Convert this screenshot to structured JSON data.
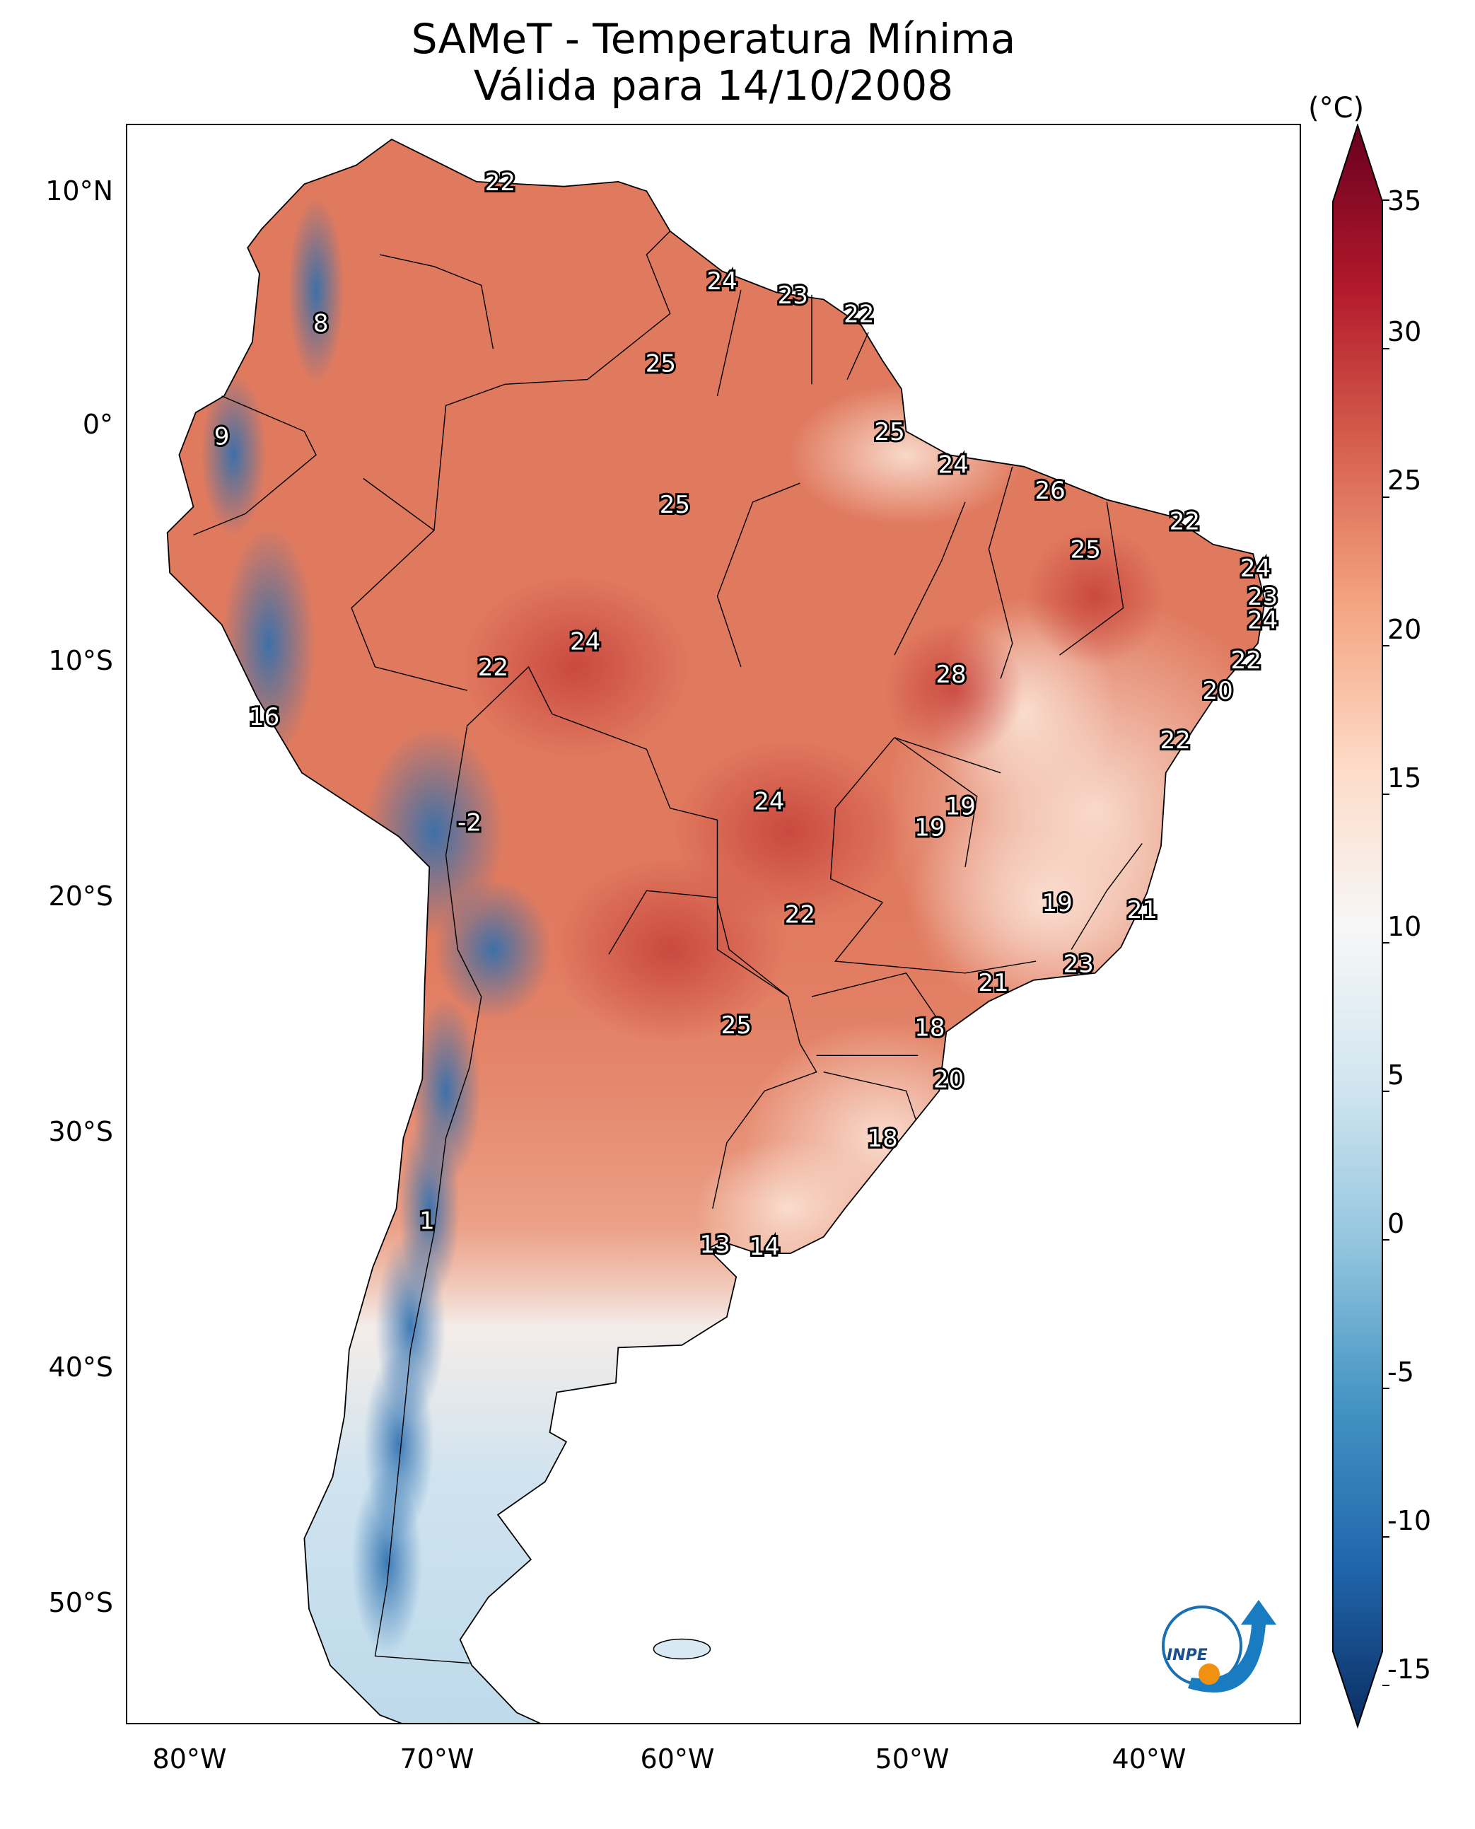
{
  "title": {
    "line1": "SAMeT - Temperatura Mínima",
    "line2": "Válida para 14/10/2008"
  },
  "colorbar": {
    "unit": "(°C)",
    "ticks": [
      "35",
      "30",
      "25",
      "20",
      "15",
      "10",
      "5",
      "0",
      "-5",
      "-10",
      "-15"
    ],
    "range": [
      -15,
      35
    ],
    "colormap": [
      "#0b2e63",
      "#2166ac",
      "#4393c3",
      "#92c5de",
      "#d1e5f0",
      "#f7f7f7",
      "#fddbc7",
      "#f4a582",
      "#d6604d",
      "#b2182b",
      "#67001f"
    ]
  },
  "axes": {
    "lat_labels": [
      "10°N",
      "0°",
      "10°S",
      "20°S",
      "30°S",
      "40°S",
      "50°S"
    ],
    "lon_labels": [
      "80°W",
      "70°W",
      "60°W",
      "50°W",
      "40°W"
    ]
  },
  "values": [
    {
      "text": "22",
      "lon": -67.2,
      "lat": 10.6
    },
    {
      "text": "24",
      "lon": -57.8,
      "lat": 6.4
    },
    {
      "text": "23",
      "lon": -54.8,
      "lat": 5.8
    },
    {
      "text": "22",
      "lon": -52.0,
      "lat": 5.0
    },
    {
      "text": "8",
      "lon": -74.8,
      "lat": 4.6
    },
    {
      "text": "25",
      "lon": -60.4,
      "lat": 2.9
    },
    {
      "text": "9",
      "lon": -79.0,
      "lat": -0.2
    },
    {
      "text": "25",
      "lon": -50.7,
      "lat": 0.0
    },
    {
      "text": "24",
      "lon": -48.0,
      "lat": -1.4
    },
    {
      "text": "26",
      "lon": -43.9,
      "lat": -2.5
    },
    {
      "text": "25",
      "lon": -59.8,
      "lat": -3.1
    },
    {
      "text": "22",
      "lon": -38.2,
      "lat": -3.8
    },
    {
      "text": "25",
      "lon": -42.4,
      "lat": -5.0
    },
    {
      "text": "24",
      "lon": -35.2,
      "lat": -5.8
    },
    {
      "text": "23",
      "lon": -34.9,
      "lat": -7.0
    },
    {
      "text": "24",
      "lon": -34.9,
      "lat": -8.0
    },
    {
      "text": "24",
      "lon": -63.6,
      "lat": -8.9
    },
    {
      "text": "22",
      "lon": -35.6,
      "lat": -9.7
    },
    {
      "text": "22",
      "lon": -67.5,
      "lat": -10.0
    },
    {
      "text": "28",
      "lon": -48.1,
      "lat": -10.3
    },
    {
      "text": "20",
      "lon": -36.8,
      "lat": -11.0
    },
    {
      "text": "16",
      "lon": -77.2,
      "lat": -12.1
    },
    {
      "text": "22",
      "lon": -38.6,
      "lat": -13.1
    },
    {
      "text": "24",
      "lon": -55.8,
      "lat": -15.7
    },
    {
      "text": "19",
      "lon": -47.7,
      "lat": -15.9
    },
    {
      "text": "19",
      "lon": -49.0,
      "lat": -16.8
    },
    {
      "text": "-2",
      "lon": -68.5,
      "lat": -16.6
    },
    {
      "text": "19",
      "lon": -43.6,
      "lat": -20.0
    },
    {
      "text": "21",
      "lon": -40.0,
      "lat": -20.3
    },
    {
      "text": "22",
      "lon": -54.5,
      "lat": -20.5
    },
    {
      "text": "23",
      "lon": -42.7,
      "lat": -22.6
    },
    {
      "text": "21",
      "lon": -46.3,
      "lat": -23.4
    },
    {
      "text": "25",
      "lon": -57.2,
      "lat": -25.2
    },
    {
      "text": "18",
      "lon": -49.0,
      "lat": -25.3
    },
    {
      "text": "20",
      "lon": -48.2,
      "lat": -27.5
    },
    {
      "text": "18",
      "lon": -51.0,
      "lat": -30.0
    },
    {
      "text": "1",
      "lon": -70.3,
      "lat": -33.5
    },
    {
      "text": "13",
      "lon": -58.1,
      "lat": -34.5
    },
    {
      "text": "14",
      "lon": -56.0,
      "lat": -34.6
    }
  ],
  "logo": {
    "text": "INPE"
  }
}
